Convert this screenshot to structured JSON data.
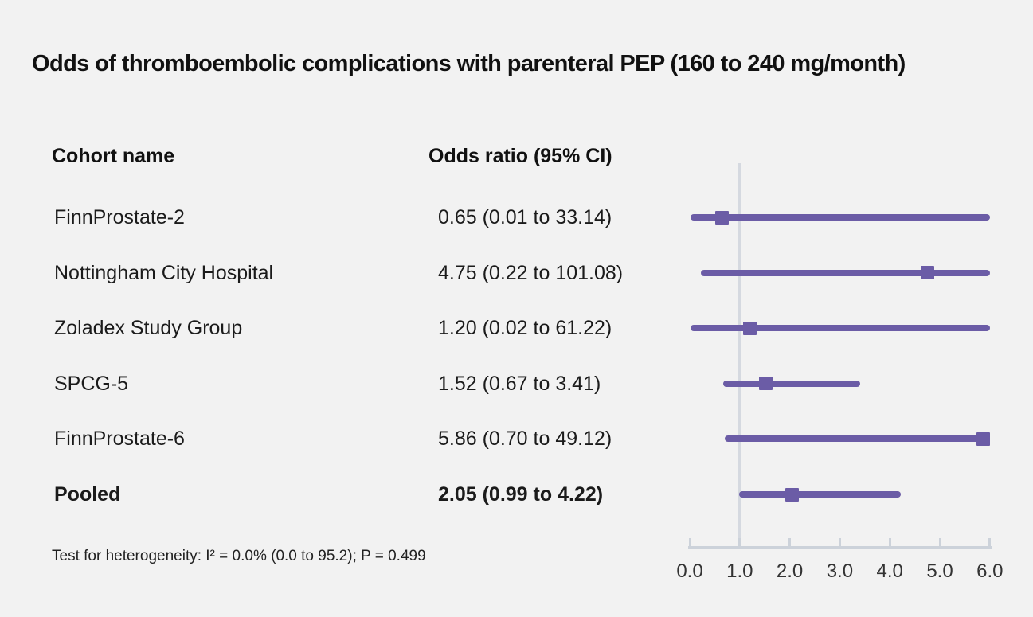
{
  "title": "Odds of thromboembolic complications with parenteral PEP (160 to 240 mg/month)",
  "columns": {
    "cohort": "Cohort name",
    "odds_ratio": "Odds ratio (95% CI)"
  },
  "footnote": "Test for heterogeneity: I² = 0.0% (0.0 to 95.2); P = 0.499",
  "colors": {
    "estimate_purple": "#6b5ca6",
    "reference_line": "#d5d9e0",
    "axis": "#ccd2da",
    "background": "#f2f2f2",
    "text": "#1b1b1b"
  },
  "chart_data": {
    "type": "forest",
    "title": "Odds of thromboembolic complications with parenteral PEP (160 to 240 mg/month)",
    "xlim": [
      0,
      6
    ],
    "refline_x": 1.0,
    "grid": false,
    "tick_labels": [
      "0.0",
      "1.0",
      "2.0",
      "3.0",
      "4.0",
      "5.0",
      "6.0"
    ],
    "rows": [
      {
        "cohort": "FinnProstate-2",
        "label": "0.65 (0.01 to 33.14)",
        "or": 0.65,
        "lo": 0.01,
        "hi": 33.14,
        "bold": false
      },
      {
        "cohort": "Nottingham City Hospital",
        "label": "4.75 (0.22 to 101.08)",
        "or": 4.75,
        "lo": 0.22,
        "hi": 101.08,
        "bold": false
      },
      {
        "cohort": "Zoladex Study Group",
        "label": "1.20 (0.02 to 61.22)",
        "or": 1.2,
        "lo": 0.02,
        "hi": 61.22,
        "bold": false
      },
      {
        "cohort": "SPCG-5",
        "label": "1.52 (0.67 to 3.41)",
        "or": 1.52,
        "lo": 0.67,
        "hi": 3.41,
        "bold": false
      },
      {
        "cohort": "FinnProstate-6",
        "label": "5.86 (0.70 to 49.12)",
        "or": 5.86,
        "lo": 0.7,
        "hi": 49.12,
        "bold": false
      },
      {
        "cohort": "Pooled",
        "label": "2.05 (0.99 to 4.22)",
        "or": 2.05,
        "lo": 0.99,
        "hi": 4.22,
        "bold": true
      }
    ]
  }
}
